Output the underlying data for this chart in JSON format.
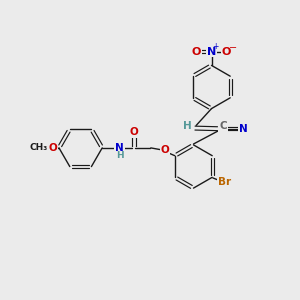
{
  "bg_color": "#ebebeb",
  "bond_color": "#1a1a1a",
  "N_color": "#0000cc",
  "O_color": "#cc0000",
  "Br_color": "#bb6600",
  "C_color": "#666666",
  "H_color": "#559999",
  "figsize": [
    3.0,
    3.0
  ],
  "dpi": 100,
  "xlim": [
    0,
    10
  ],
  "ylim": [
    0,
    10
  ]
}
